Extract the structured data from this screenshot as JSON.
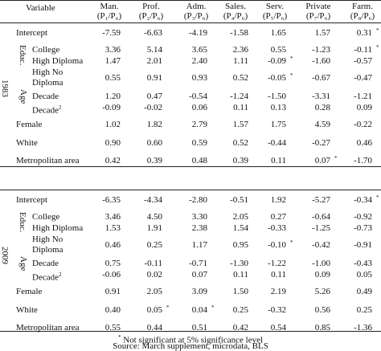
{
  "header": {
    "variable": "Variable",
    "columns": [
      {
        "name": "Man.",
        "ratio": "(P₁/P₆)"
      },
      {
        "name": "Prof.",
        "ratio": "(P₂/P₆)"
      },
      {
        "name": "Adm.",
        "ratio": "(P₃/P₆)"
      },
      {
        "name": "Sales.",
        "ratio": "(P₄/P₆)"
      },
      {
        "name": "Serv.",
        "ratio": "(P₅/P₆)"
      },
      {
        "name": "Private",
        "ratio": "(P₇/P₆)"
      },
      {
        "name": "Farm.",
        "ratio": "(P₈/P₆)"
      }
    ]
  },
  "panels": [
    {
      "year": "1983",
      "educ_label": "Educ.",
      "age_label": "Age",
      "rows": [
        {
          "label": "Intercept",
          "values": [
            "-7.59",
            "-6.63",
            "-4.19",
            "-1.58",
            "1.65",
            "1.57",
            "0.31"
          ],
          "stars": [
            "",
            "",
            "",
            "",
            "",
            "",
            "*"
          ]
        },
        {
          "label": "College",
          "values": [
            "3.36",
            "5.14",
            "3.65",
            "2.36",
            "0.55",
            "-1.23",
            "-0.11"
          ],
          "stars": [
            "",
            "",
            "",
            "",
            "",
            "",
            "*"
          ]
        },
        {
          "label": "High Diploma",
          "values": [
            "1.47",
            "2.01",
            "2.40",
            "1.11",
            "-0.09",
            "-1.60",
            "-0.57"
          ],
          "stars": [
            "",
            "",
            "",
            "",
            "*",
            "",
            ""
          ]
        },
        {
          "label": "High No Diploma",
          "line1": "High No",
          "line2": "Diploma",
          "values": [
            "0.55",
            "0.91",
            "0.93",
            "0.52",
            "-0.05",
            "-0.67",
            "-0.47"
          ],
          "stars": [
            "",
            "",
            "",
            "",
            "*",
            "",
            ""
          ]
        },
        {
          "label": "Decade",
          "values": [
            "1.20",
            "0.47",
            "-0.54",
            "-1.24",
            "-1.50",
            "-3.31",
            "-1.21"
          ],
          "stars": [
            "",
            "",
            "",
            "",
            "",
            "",
            ""
          ]
        },
        {
          "label": "Decade",
          "sup": "2",
          "values": [
            "-0.09",
            "-0.02",
            "0.06",
            "0.11",
            "0.13",
            "0.28",
            "0.09"
          ],
          "stars": [
            "",
            "",
            "",
            "",
            "",
            "",
            ""
          ]
        },
        {
          "label": "Female",
          "values": [
            "1.02",
            "1.82",
            "2.79",
            "1.57",
            "1.75",
            "4.59",
            "-0.22"
          ],
          "stars": [
            "",
            "",
            "",
            "",
            "",
            "",
            ""
          ]
        },
        {
          "label": "White",
          "values": [
            "0.90",
            "0.60",
            "0.59",
            "0.52",
            "-0.44",
            "-0.27",
            "0.46"
          ],
          "stars": [
            "",
            "",
            "",
            "",
            "",
            "",
            ""
          ]
        },
        {
          "label": "Metropolitan area",
          "values": [
            "0.42",
            "0.39",
            "0.48",
            "0.39",
            "0.11",
            "0.07",
            "-1.70"
          ],
          "stars": [
            "",
            "",
            "",
            "",
            "",
            "*",
            ""
          ]
        }
      ]
    },
    {
      "year": "2009",
      "educ_label": "Educ.",
      "age_label": "Age",
      "rows": [
        {
          "label": "Intercept",
          "values": [
            "-6.35",
            "-4.34",
            "-2.80",
            "-0.51",
            "1.92",
            "-5.27",
            "-0.34"
          ],
          "stars": [
            "",
            "",
            "",
            "",
            "",
            "",
            "*"
          ]
        },
        {
          "label": "College",
          "values": [
            "3.46",
            "4.50",
            "3.30",
            "2.05",
            "0.27",
            "-0.64",
            "-0.92"
          ],
          "stars": [
            "",
            "",
            "",
            "",
            "",
            "",
            ""
          ]
        },
        {
          "label": "High Diploma",
          "values": [
            "1.53",
            "1.91",
            "2.38",
            "1.54",
            "-0.33",
            "-1.25",
            "-0.73"
          ],
          "stars": [
            "",
            "",
            "",
            "",
            "",
            "",
            ""
          ]
        },
        {
          "label": "High No Diploma",
          "line1": "High No",
          "line2": "Diploma",
          "values": [
            "0.46",
            "0.25",
            "1.17",
            "0.95",
            "-0.10",
            "-0.42",
            "-0.91"
          ],
          "stars": [
            "",
            "",
            "",
            "",
            "*",
            "",
            ""
          ]
        },
        {
          "label": "Decade",
          "values": [
            "0.75",
            "-0.11",
            "-0.71",
            "-1.30",
            "-1.22",
            "-1.00",
            "-0.43"
          ],
          "stars": [
            "",
            "",
            "",
            "",
            "",
            "",
            ""
          ]
        },
        {
          "label": "Decade",
          "sup": "2",
          "values": [
            "-0.06",
            "0.02",
            "0.07",
            "0.11",
            "0.11",
            "0.09",
            "0.05"
          ],
          "stars": [
            "",
            "",
            "",
            "",
            "",
            "",
            ""
          ]
        },
        {
          "label": "Female",
          "values": [
            "0.91",
            "2.05",
            "3.09",
            "1.50",
            "2.19",
            "5.26",
            "0.49"
          ],
          "stars": [
            "",
            "",
            "",
            "",
            "",
            "",
            ""
          ]
        },
        {
          "label": "White",
          "values": [
            "0.40",
            "0.05",
            "0.04",
            "0.25",
            "-0.32",
            "0.56",
            "0.25"
          ],
          "stars": [
            "",
            "*",
            "*",
            "",
            "",
            "",
            ""
          ]
        },
        {
          "label": "Metropolitan area",
          "values": [
            "0.55",
            "0.44",
            "0.51",
            "0.42",
            "0.54",
            "0.85",
            "-1.36"
          ],
          "stars": [
            "",
            "",
            "",
            "",
            "",
            "",
            ""
          ]
        }
      ]
    }
  ],
  "footnotes": {
    "note_star": "*",
    "note_text": " Not significant at 5% significance level",
    "source": "Source: March supplement, microdata, BLS"
  }
}
